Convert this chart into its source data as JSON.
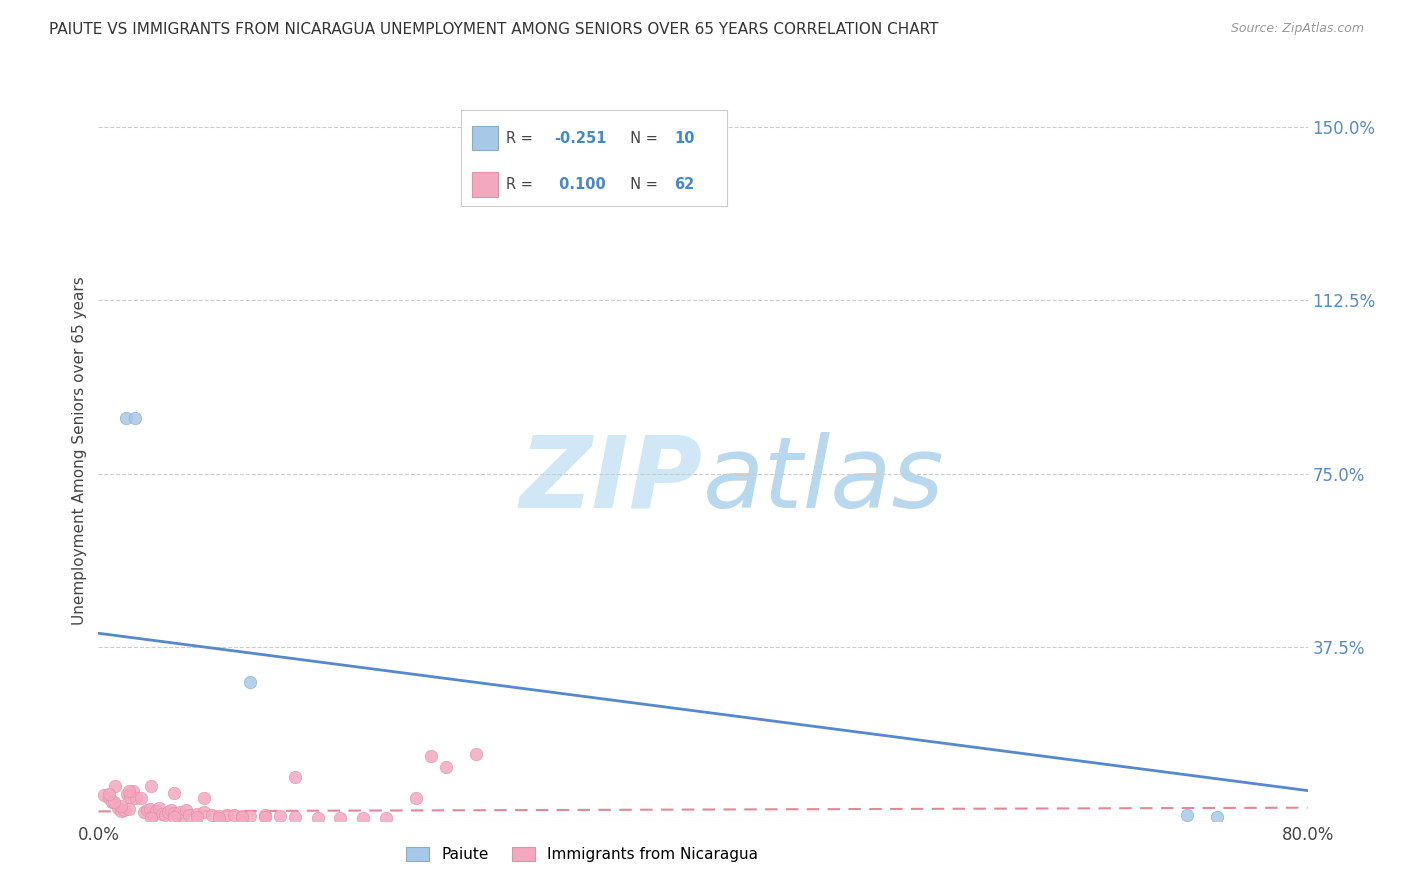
{
  "title": "PAIUTE VS IMMIGRANTS FROM NICARAGUA UNEMPLOYMENT AMONG SENIORS OVER 65 YEARS CORRELATION CHART",
  "source": "Source: ZipAtlas.com",
  "ylabel_label": "Unemployment Among Seniors over 65 years",
  "right_ytick_labels": [
    "150.0%",
    "112.5%",
    "75.0%",
    "37.5%",
    ""
  ],
  "right_ytick_vals": [
    1.5,
    1.125,
    0.75,
    0.375,
    0.0
  ],
  "xlim": [
    0.0,
    0.8
  ],
  "ylim": [
    0.0,
    1.6
  ],
  "color_paiute": "#a8c8e8",
  "color_paiute_line": "#5588cc",
  "color_nicaragua": "#f4a8c0",
  "color_nicaragua_line": "#e08898",
  "watermark_color": "#d0e8f5",
  "paiute_scatter_x": [
    0.018,
    0.024,
    0.72,
    0.74,
    0.1
  ],
  "paiute_scatter_y": [
    0.87,
    0.87,
    0.012,
    0.008,
    0.3
  ],
  "nicaragua_scatter_x": [
    0.004,
    0.007,
    0.009,
    0.011,
    0.013,
    0.015,
    0.017,
    0.019,
    0.021,
    0.023,
    0.025,
    0.028,
    0.03,
    0.032,
    0.034,
    0.036,
    0.038,
    0.04,
    0.042,
    0.044,
    0.046,
    0.048,
    0.05,
    0.052,
    0.054,
    0.056,
    0.058,
    0.06,
    0.065,
    0.07,
    0.075,
    0.08,
    0.085,
    0.09,
    0.095,
    0.1,
    0.11,
    0.12,
    0.13,
    0.145,
    0.16,
    0.175,
    0.19,
    0.21,
    0.23,
    0.25,
    0.13,
    0.22,
    0.11,
    0.095,
    0.08,
    0.065,
    0.05,
    0.035,
    0.02,
    0.015,
    0.01,
    0.007,
    0.02,
    0.035,
    0.05,
    0.07
  ],
  "nicaragua_scatter_y": [
    0.055,
    0.048,
    0.04,
    0.075,
    0.028,
    0.02,
    0.022,
    0.058,
    0.052,
    0.065,
    0.05,
    0.048,
    0.018,
    0.022,
    0.025,
    0.012,
    0.02,
    0.028,
    0.015,
    0.012,
    0.018,
    0.022,
    0.016,
    0.013,
    0.018,
    0.01,
    0.022,
    0.012,
    0.014,
    0.018,
    0.012,
    0.01,
    0.012,
    0.012,
    0.009,
    0.01,
    0.012,
    0.009,
    0.008,
    0.005,
    0.005,
    0.005,
    0.005,
    0.048,
    0.115,
    0.145,
    0.095,
    0.14,
    0.008,
    0.007,
    0.006,
    0.008,
    0.008,
    0.006,
    0.025,
    0.032,
    0.04,
    0.058,
    0.065,
    0.075,
    0.06,
    0.048
  ],
  "paiute_line_x": [
    0.0,
    0.8
  ],
  "paiute_line_y": [
    0.405,
    0.065
  ],
  "nicaragua_line_x": [
    0.0,
    0.8
  ],
  "nicaragua_line_y": [
    0.02,
    0.028
  ],
  "background_color": "#ffffff",
  "grid_color": "#cccccc"
}
